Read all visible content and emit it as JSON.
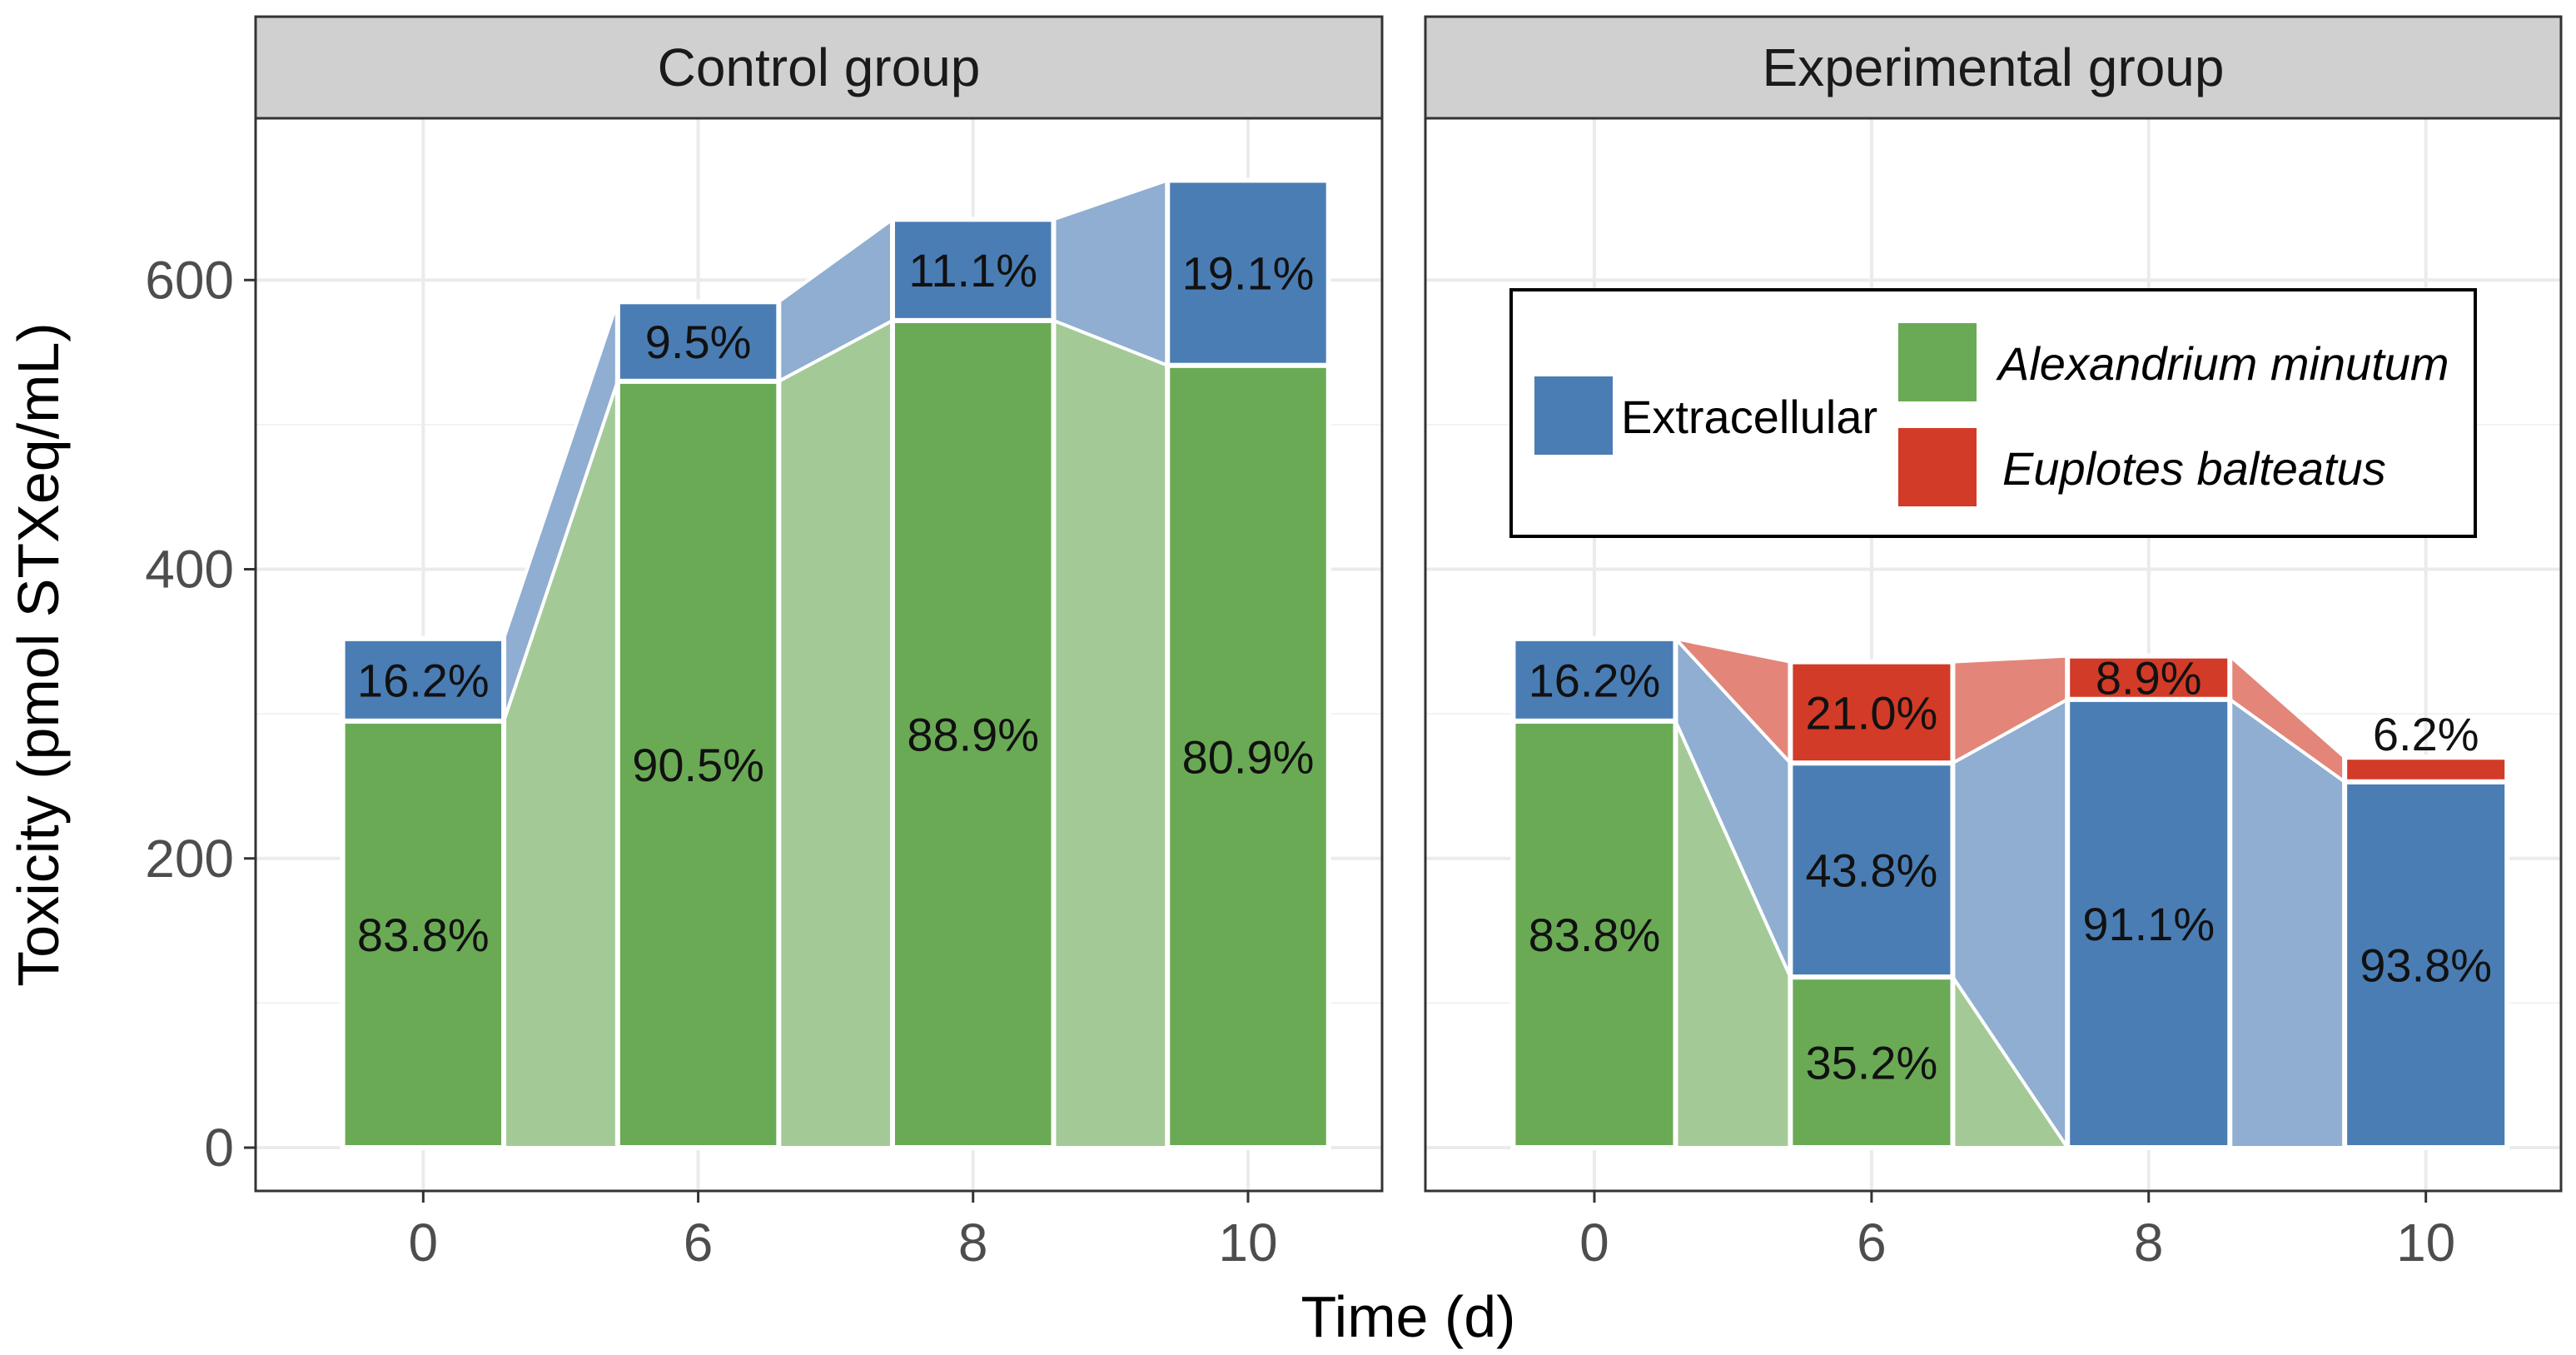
{
  "chart_data": {
    "type": "stacked-bar-alluvial",
    "xlabel": "Time (d)",
    "ylabel": "Toxicity (pmol STXeq/mL)",
    "ylim": [
      0,
      690
    ],
    "yticks": [
      0,
      200,
      400,
      600
    ],
    "categories": [
      "0",
      "6",
      "8",
      "10"
    ],
    "colors": {
      "Extracellular": "#4a7db4",
      "Alexandrium minutum": "#6aaa55",
      "Euplotes balteatus": "#d23b27"
    },
    "legend": {
      "placement": "top-right of Experimental group panel",
      "entries": [
        {
          "name": "Extracellular",
          "italic": false
        },
        {
          "name": "Alexandrium minutum",
          "italic": true
        },
        {
          "name": "Euplotes balteatus",
          "italic": true
        }
      ]
    },
    "panels": [
      {
        "title": "Control group",
        "stack_order": [
          "Alexandrium minutum",
          "Extracellular"
        ],
        "bars": [
          {
            "x": "0",
            "segments": [
              {
                "series": "Alexandrium minutum",
                "value": 295,
                "label": "83.8%"
              },
              {
                "series": "Extracellular",
                "value": 57,
                "label": "16.2%"
              }
            ]
          },
          {
            "x": "6",
            "segments": [
              {
                "series": "Alexandrium minutum",
                "value": 530,
                "label": "90.5%"
              },
              {
                "series": "Extracellular",
                "value": 55,
                "label": "9.5%"
              }
            ]
          },
          {
            "x": "8",
            "segments": [
              {
                "series": "Alexandrium minutum",
                "value": 572,
                "label": "88.9%"
              },
              {
                "series": "Extracellular",
                "value": 70,
                "label": "11.1%"
              }
            ]
          },
          {
            "x": "10",
            "segments": [
              {
                "series": "Alexandrium minutum",
                "value": 541,
                "label": "80.9%"
              },
              {
                "series": "Extracellular",
                "value": 128,
                "label": "19.1%"
              }
            ]
          }
        ]
      },
      {
        "title": "Experimental group",
        "stack_order": [
          "Alexandrium minutum",
          "Extracellular",
          "Euplotes balteatus"
        ],
        "bars": [
          {
            "x": "0",
            "segments": [
              {
                "series": "Alexandrium minutum",
                "value": 295,
                "label": "83.8%"
              },
              {
                "series": "Extracellular",
                "value": 57,
                "label": "16.2%"
              }
            ]
          },
          {
            "x": "6",
            "segments": [
              {
                "series": "Alexandrium minutum",
                "value": 118,
                "label": "35.2%"
              },
              {
                "series": "Extracellular",
                "value": 148,
                "label": "43.8%"
              },
              {
                "series": "Euplotes balteatus",
                "value": 70,
                "label": "21.0%"
              }
            ]
          },
          {
            "x": "8",
            "segments": [
              {
                "series": "Extracellular",
                "value": 310,
                "label": "91.1%"
              },
              {
                "series": "Euplotes balteatus",
                "value": 30,
                "label": "8.9%"
              }
            ]
          },
          {
            "x": "10",
            "segments": [
              {
                "series": "Extracellular",
                "value": 253,
                "label": "93.8%"
              },
              {
                "series": "Euplotes balteatus",
                "value": 17,
                "label": "6.2%"
              }
            ]
          }
        ]
      }
    ]
  }
}
